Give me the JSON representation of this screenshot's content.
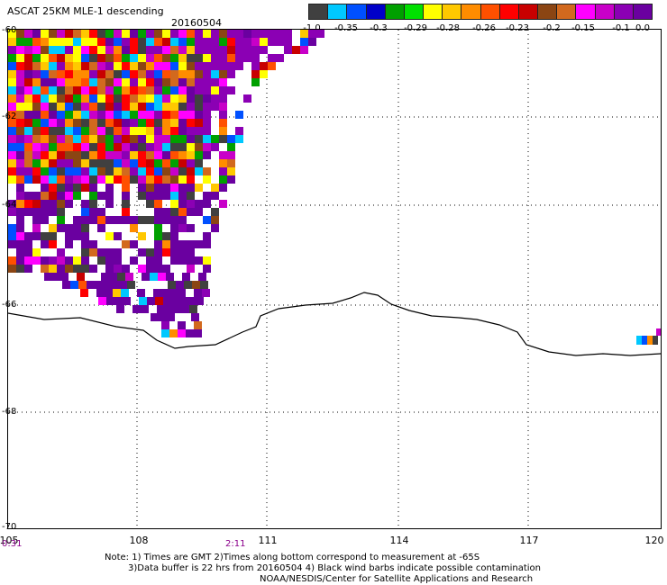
{
  "header": {
    "title": "ASCAT 25KM MLE-1 descending",
    "date": "20160504"
  },
  "colorbar": {
    "colors": [
      "#404040",
      "#00c8ff",
      "#0050ff",
      "#0000c8",
      "#00a000",
      "#00e000",
      "#ffff00",
      "#ffc800",
      "#ff8c00",
      "#ff5000",
      "#ff0000",
      "#c80000",
      "#8b4513",
      "#d2691e",
      "#ff00ff",
      "#c800c8",
      "#8b00b4",
      "#6a00a0"
    ],
    "tick_labels": [
      "-1.0",
      "-0.35",
      "-0.3",
      "-0.29",
      "-0.28",
      "-0.26",
      "-0.23",
      "-0.2",
      "-0.15",
      "-0.1",
      "0.0"
    ]
  },
  "map": {
    "lon_range": [
      105,
      120
    ],
    "lat_range": [
      -60,
      -70
    ],
    "x_tick_labels": [
      "105",
      "108",
      "111",
      "114",
      "117",
      "120"
    ],
    "y_tick_labels": [
      "-60",
      "-62",
      "-64",
      "-66",
      "-68",
      "-70"
    ],
    "time_labels": [
      "0:31",
      "2:11"
    ],
    "grid": "dotted",
    "coastline": "Antarctic coast"
  },
  "notes": {
    "line1": "Note: 1) Times are GMT 2)Times along bottom correspond to measurement at -65S",
    "line2": "3)Data buffer is 22 hrs from 20160504 4) Black wind barbs indicate possible contamination",
    "line3": "NOAA/NESDIS/Center for Satellite Applications and Research"
  }
}
